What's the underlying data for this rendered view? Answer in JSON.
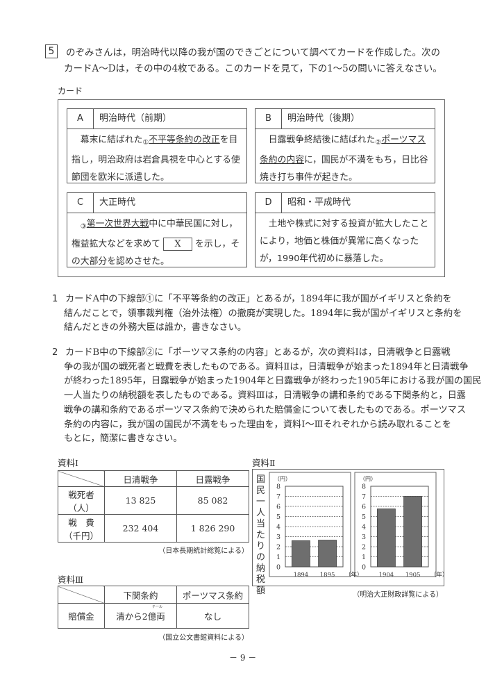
{
  "question": {
    "number": "5",
    "intro_lines": [
      "のぞみさんは，明治時代以降の我が国のできごとについて調べてカードを作成した。次の",
      "カードA～Dは，その中の4枚である。このカードを見て，下の1～5の問いに答えなさい。"
    ]
  },
  "cards": {
    "label": "カード",
    "items": [
      {
        "letter": "A",
        "period": "明治時代（前期）",
        "marker": "①",
        "pre": "幕末に結ばれた",
        "underlined": "不平等条約の改正",
        "post": "を目指し，明治政府は岩倉具視を中心とする使節団を欧米に派遣した。"
      },
      {
        "letter": "B",
        "period": "明治時代（後期）",
        "marker": "②",
        "pre": "日露戦争終結後に結ばれた",
        "underlined": "ポーツマス条約の内容",
        "post": "に，国民が不満をもち，日比谷焼き打ち事件が起きた。"
      },
      {
        "letter": "C",
        "period": "大正時代",
        "marker": "③",
        "pre": "",
        "underlined": "第一次世界大戦",
        "post": "中に中華民国に対し，権益拡大などを求めて",
        "blank": "X",
        "post2": "を示し，その大部分を認めさせた。"
      },
      {
        "letter": "D",
        "period": "昭和・平成時代",
        "text": "土地や株式に対する投資が拡大したことにより，地価と株価が異常に高くなったが，1990年代初めに暴落した。"
      }
    ]
  },
  "q1": {
    "number": "1",
    "lines": [
      "カードA中の下線部①に「不平等条約の改正」とあるが，1894年に我が国がイギリスと条約を",
      "結んだことで，領事裁判権（治外法権）の撤廃が実現した。1894年に我が国がイギリスと条約を",
      "結んだときの外務大臣は誰か，書きなさい。"
    ]
  },
  "q2": {
    "number": "2",
    "lines": [
      "カードB中の下線部②に「ポーツマス条約の内容」とあるが，次の資料Ⅰは，日清戦争と日露戦",
      "争の我が国の戦死者と戦費を表したものである。資料Ⅱは，日清戦争が始まった1894年と日清戦争",
      "が終わった1895年，日露戦争が始まった1904年と日露戦争が終わった1905年における我が国の国民",
      "一人当たりの納税額を表したものである。資料Ⅲは，日清戦争の講和条約である下関条約と，日露",
      "戦争の講和条約であるポーツマス条約で決められた賠償金について表したものである。ポーツマス",
      "条約の内容に，我が国の国民が不満をもった理由を，資料Ⅰ～Ⅲそれぞれから読み取れることを",
      "もとに，簡潔に書きなさい。"
    ]
  },
  "material1": {
    "label": "資料Ⅰ",
    "headers": [
      "日清戦争",
      "日露戦争"
    ],
    "rows": [
      {
        "label": "戦死者",
        "unit": "（人）",
        "values": [
          "13 825",
          "85 082"
        ]
      },
      {
        "label": "戦　費",
        "unit": "（千円）",
        "values": [
          "232 404",
          "1 826 290"
        ]
      }
    ],
    "source": "（日本長期統計総覧による）"
  },
  "material3": {
    "label": "資料Ⅲ",
    "headers": [
      "下関条約",
      "ポーツマス条約"
    ],
    "row": {
      "label": "賠償金",
      "values": [
        "清から2億両",
        "なし"
      ],
      "ruby": "テール"
    },
    "source": "（国立公文書館資料による）"
  },
  "chart_data": {
    "label": "資料Ⅱ",
    "type": "bar",
    "ylabel": "国民一人当たりの納税額",
    "yunit": "（円）",
    "xunit": "（年）",
    "ylim": [
      0,
      8
    ],
    "yticks": [
      "0",
      "1",
      "2",
      "3",
      "4",
      "5",
      "6",
      "7",
      "8"
    ],
    "grid": true,
    "panels": [
      {
        "categories": [
          "1894",
          "1895"
        ],
        "values": [
          2.6,
          2.65
        ]
      },
      {
        "categories": [
          "1904",
          "1905"
        ],
        "values": [
          5.75,
          7.0
        ]
      }
    ],
    "source": "（明治大正財政詳覧による）",
    "bar_color": "#6e6e6e"
  },
  "page_number": "－ 9 －"
}
